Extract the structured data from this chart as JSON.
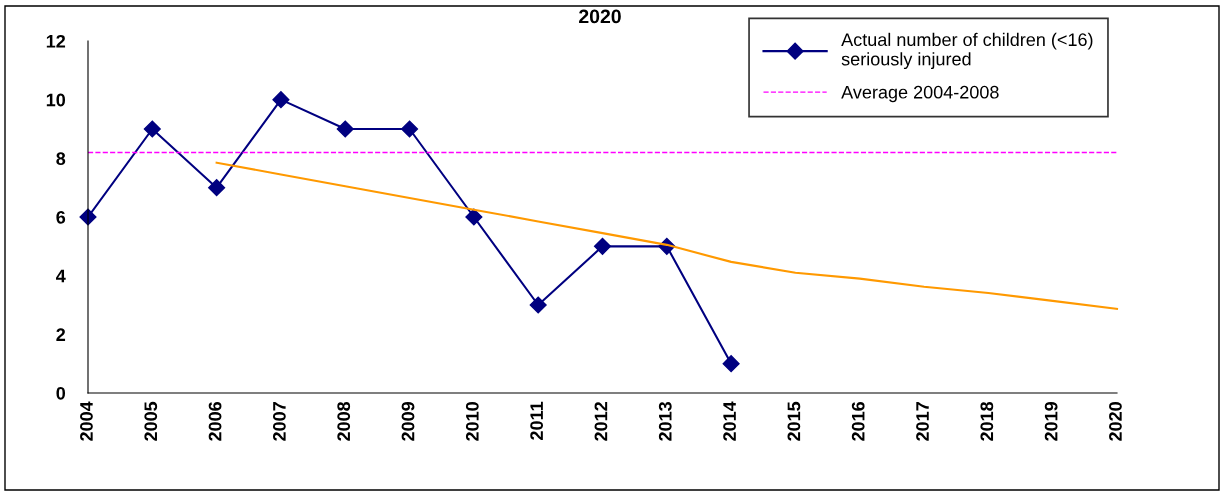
{
  "chart_data": {
    "type": "line",
    "title": "2020",
    "categories": [
      "2004",
      "2005",
      "2006",
      "2007",
      "2008",
      "2009",
      "2010",
      "2011",
      "2012",
      "2013",
      "2014",
      "2015",
      "2016",
      "2017",
      "2018",
      "2019",
      "2020"
    ],
    "series": [
      {
        "name": "Actual number of children (<16) seriously injured",
        "color": "#000080",
        "marker": "diamond",
        "values": [
          6,
          9,
          7,
          10,
          9,
          9,
          6,
          3,
          5,
          5,
          1,
          null,
          null,
          null,
          null,
          null,
          null
        ]
      },
      {
        "color": "#ff9900",
        "marker": "none",
        "values": [
          null,
          null,
          7.85,
          7.45,
          7.05,
          6.65,
          6.25,
          5.85,
          5.45,
          5.05,
          4.47,
          4.1,
          3.9,
          3.62,
          3.41,
          3.14,
          2.87
        ]
      }
    ],
    "ref_lines": [
      {
        "axis": "y",
        "value": 8.2,
        "label": "Average 2004-2008",
        "color": "#ff00ff",
        "line_style": "dashed"
      }
    ],
    "ylim": [
      0,
      12
    ],
    "yticks": [
      0,
      2,
      4,
      6,
      8,
      10,
      12
    ],
    "grid": false,
    "legend": "top right"
  }
}
